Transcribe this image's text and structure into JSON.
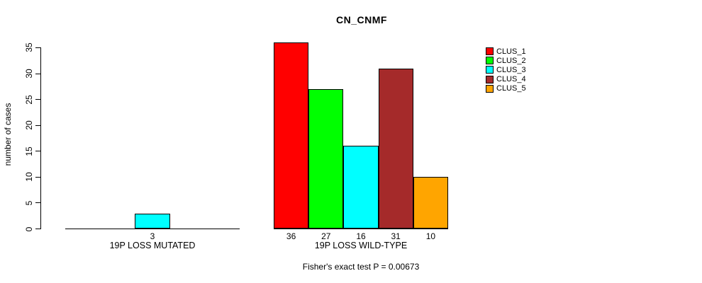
{
  "title": "CN_CNMF",
  "footnote": "Fisher's exact test P = 0.00673",
  "y_axis": {
    "label": "number of cases",
    "ticks": [
      0,
      5,
      10,
      15,
      20,
      25,
      30,
      35
    ]
  },
  "legend": {
    "items": [
      {
        "label": "CLUS_1",
        "color": "#FF0000"
      },
      {
        "label": "CLUS_2",
        "color": "#00FF00"
      },
      {
        "label": "CLUS_3",
        "color": "#00FFFF"
      },
      {
        "label": "CLUS_4",
        "color": "#A52A2A"
      },
      {
        "label": "CLUS_5",
        "color": "#FFA500"
      }
    ]
  },
  "chart_data": {
    "type": "bar",
    "title": "CN_CNMF",
    "ylabel": "number of cases",
    "ylim": [
      0,
      36
    ],
    "yticks": [
      0,
      5,
      10,
      15,
      20,
      25,
      30,
      35
    ],
    "grid": false,
    "legend_position": "top-right",
    "series": [
      "CLUS_1",
      "CLUS_2",
      "CLUS_3",
      "CLUS_4",
      "CLUS_5"
    ],
    "series_colors": [
      "#FF0000",
      "#00FF00",
      "#00FFFF",
      "#A52A2A",
      "#FFA500"
    ],
    "groups": [
      {
        "label": "19P LOSS MUTATED",
        "values": [
          0,
          0,
          3,
          0,
          0
        ],
        "bar_labels": [
          "",
          "",
          "3",
          "",
          ""
        ]
      },
      {
        "label": "19P LOSS WILD-TYPE",
        "values": [
          36,
          27,
          16,
          31,
          10
        ],
        "bar_labels": [
          "36",
          "27",
          "16",
          "31",
          "10"
        ]
      }
    ],
    "annotation": "Fisher's exact test P = 0.00673"
  }
}
